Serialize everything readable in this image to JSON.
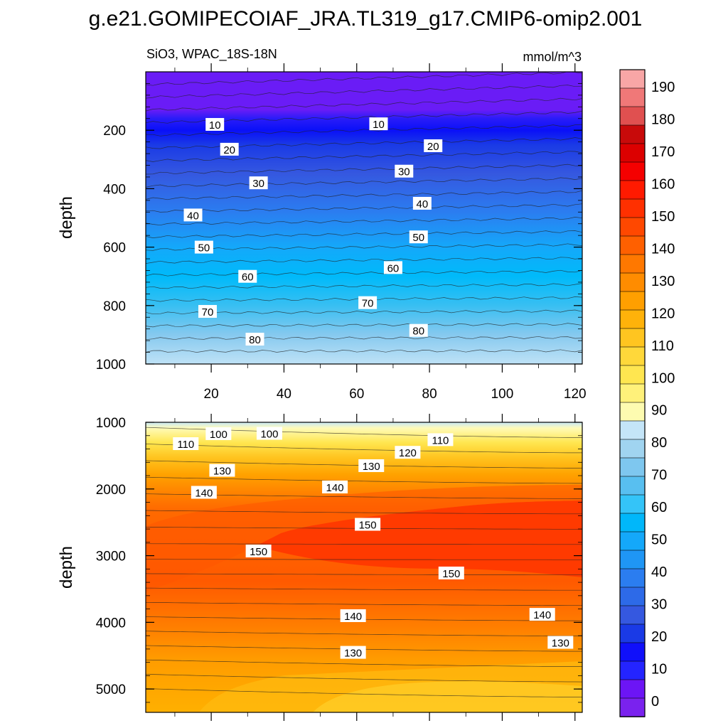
{
  "title": "g.e21.GOMIPECOIAF_JRA.TL319_g17.CMIP6-omip2.001",
  "chart_data": [
    {
      "type": "heatmap",
      "panel": "upper",
      "left_label": "SiO3, WPAC_18S-18N",
      "right_label": "mmol/m^3",
      "ylabel": "depth",
      "xlabel": "",
      "xlim": [
        2,
        122
      ],
      "ylim": [
        0,
        1000
      ],
      "y_inverted": true,
      "x_ticks": [
        20,
        40,
        60,
        80,
        100,
        120
      ],
      "y_ticks": [
        200,
        400,
        600,
        800,
        1000
      ],
      "contour_labels": [
        {
          "text": "10",
          "x": 21,
          "y": 180
        },
        {
          "text": "10",
          "x": 66,
          "y": 178
        },
        {
          "text": "20",
          "x": 25,
          "y": 265
        },
        {
          "text": "20",
          "x": 81,
          "y": 253
        },
        {
          "text": "30",
          "x": 33,
          "y": 380
        },
        {
          "text": "30",
          "x": 73,
          "y": 340
        },
        {
          "text": "40",
          "x": 15,
          "y": 490
        },
        {
          "text": "40",
          "x": 78,
          "y": 450
        },
        {
          "text": "50",
          "x": 18,
          "y": 600
        },
        {
          "text": "50",
          "x": 77,
          "y": 565
        },
        {
          "text": "60",
          "x": 30,
          "y": 700
        },
        {
          "text": "60",
          "x": 70,
          "y": 670
        },
        {
          "text": "70",
          "x": 19,
          "y": 820
        },
        {
          "text": "70",
          "x": 63,
          "y": 790
        },
        {
          "text": "80",
          "x": 32,
          "y": 915
        },
        {
          "text": "80",
          "x": 77,
          "y": 885
        }
      ]
    },
    {
      "type": "heatmap",
      "panel": "lower",
      "ylabel": "depth",
      "xlim": [
        2,
        122
      ],
      "ylim": [
        1000,
        5350
      ],
      "y_inverted": true,
      "y_ticks": [
        1000,
        2000,
        3000,
        4000,
        5000
      ],
      "contour_labels": [
        {
          "text": "100",
          "x": 22,
          "y": 1170
        },
        {
          "text": "100",
          "x": 36,
          "y": 1165
        },
        {
          "text": "110",
          "x": 13,
          "y": 1320
        },
        {
          "text": "110",
          "x": 83,
          "y": 1260
        },
        {
          "text": "120",
          "x": 74,
          "y": 1450
        },
        {
          "text": "130",
          "x": 23,
          "y": 1720
        },
        {
          "text": "130",
          "x": 64,
          "y": 1650
        },
        {
          "text": "140",
          "x": 18,
          "y": 2050
        },
        {
          "text": "140",
          "x": 54,
          "y": 1970
        },
        {
          "text": "150",
          "x": 33,
          "y": 2930
        },
        {
          "text": "150",
          "x": 63,
          "y": 2530
        },
        {
          "text": "150",
          "x": 86,
          "y": 3260
        },
        {
          "text": "140",
          "x": 59,
          "y": 3900
        },
        {
          "text": "140",
          "x": 111,
          "y": 3880
        },
        {
          "text": "130",
          "x": 59,
          "y": 4450
        },
        {
          "text": "130",
          "x": 116,
          "y": 4300
        }
      ]
    }
  ],
  "colorbar": {
    "levels": [
      0,
      10,
      20,
      30,
      40,
      50,
      60,
      70,
      80,
      90,
      100,
      110,
      120,
      130,
      140,
      150,
      160,
      170,
      180,
      190
    ],
    "colors": [
      "#7a22ee",
      "#6c15f5",
      "#2424ff",
      "#1010fa",
      "#1a3ae6",
      "#3558e0",
      "#2d6ae8",
      "#2b7df0",
      "#1f96f5",
      "#14a8fa",
      "#00b7fa",
      "#34c4f8",
      "#58bff0",
      "#7ec7ef",
      "#a0d4f0",
      "#c4e5f8",
      "#fdfbb0",
      "#fff17a",
      "#ffe650",
      "#ffd83a",
      "#ffc520",
      "#ffb20a",
      "#ff9f00",
      "#ff8c00",
      "#ff7800",
      "#ff6000",
      "#ff4800",
      "#ff3000",
      "#ff1a00",
      "#f50000",
      "#dc0000",
      "#c80a0a",
      "#e05050",
      "#f07878",
      "#f8a6a6"
    ]
  }
}
